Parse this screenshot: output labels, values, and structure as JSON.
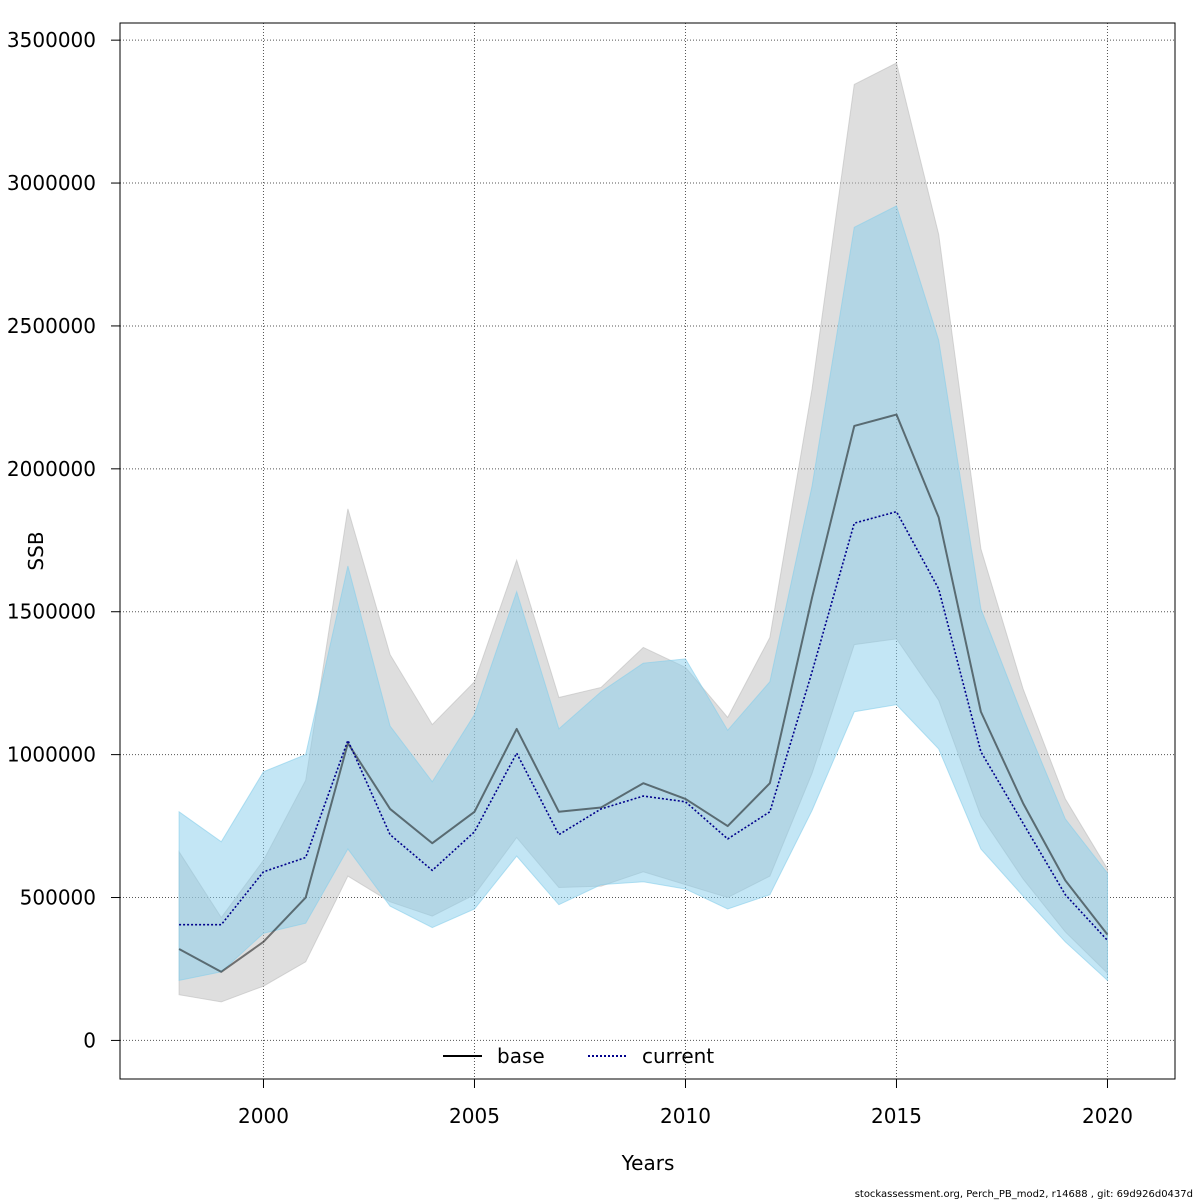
{
  "chart_data": {
    "type": "line",
    "xlabel": "Years",
    "ylabel": "SSB",
    "xlim": [
      1996.6,
      2021.6
    ],
    "ylim": [
      -135000,
      3560000
    ],
    "x_ticks": [
      2000,
      2005,
      2010,
      2015,
      2020
    ],
    "x_tick_labels": [
      "2000",
      "2005",
      "2010",
      "2015",
      "2020"
    ],
    "y_ticks": [
      0,
      500000,
      1000000,
      1500000,
      2000000,
      2500000,
      3000000,
      3500000
    ],
    "y_tick_labels": [
      "0",
      "500000",
      "1000000",
      "1500000",
      "2000000",
      "2500000",
      "3000000",
      "3500000"
    ],
    "grid": true,
    "legend_position": "bottom-center",
    "x": [
      1998,
      1999,
      2000,
      2001,
      2002,
      2003,
      2004,
      2005,
      2006,
      2007,
      2008,
      2009,
      2010,
      2011,
      2012,
      2013,
      2014,
      2015,
      2016,
      2017,
      2018,
      2019,
      2020
    ],
    "series": [
      {
        "name": "base",
        "line_color": "#000000",
        "band_color": "#bebebe",
        "line_style": "solid",
        "values": [
          320000,
          240000,
          345000,
          500000,
          1040000,
          810000,
          690000,
          800000,
          1090000,
          800000,
          815000,
          900000,
          845000,
          750000,
          900000,
          1550000,
          2150000,
          2190000,
          1830000,
          1150000,
          830000,
          560000,
          370000
        ],
        "upper": [
          660000,
          430000,
          630000,
          910000,
          1860000,
          1350000,
          1105000,
          1255000,
          1680000,
          1200000,
          1235000,
          1375000,
          1305000,
          1130000,
          1410000,
          2280000,
          3345000,
          3420000,
          2820000,
          1720000,
          1230000,
          845000,
          600000
        ],
        "lower": [
          160000,
          135000,
          190000,
          275000,
          575000,
          485000,
          435000,
          510000,
          710000,
          535000,
          540000,
          590000,
          545000,
          500000,
          575000,
          935000,
          1385000,
          1405000,
          1190000,
          785000,
          565000,
          380000,
          235000
        ]
      },
      {
        "name": "current",
        "line_color": "#00008b",
        "band_color": "#87ceeb",
        "line_style": "dotted",
        "values": [
          405000,
          405000,
          590000,
          640000,
          1050000,
          720000,
          595000,
          730000,
          1005000,
          720000,
          810000,
          855000,
          835000,
          705000,
          800000,
          1290000,
          1810000,
          1850000,
          1580000,
          1010000,
          760000,
          510000,
          350000
        ],
        "upper": [
          800000,
          695000,
          940000,
          1000000,
          1660000,
          1100000,
          905000,
          1140000,
          1570000,
          1090000,
          1220000,
          1320000,
          1335000,
          1085000,
          1255000,
          1940000,
          2845000,
          2920000,
          2450000,
          1510000,
          1130000,
          775000,
          585000
        ],
        "lower": [
          210000,
          240000,
          375000,
          410000,
          670000,
          470000,
          395000,
          460000,
          645000,
          475000,
          545000,
          555000,
          530000,
          460000,
          510000,
          805000,
          1150000,
          1175000,
          1020000,
          670000,
          505000,
          345000,
          210000
        ]
      }
    ]
  },
  "legend": {
    "items": [
      {
        "label": "base"
      },
      {
        "label": "current"
      }
    ]
  },
  "footer_text": "stockassessment.org, Perch_PB_mod2, r14688 , git: 69d926d0437d"
}
